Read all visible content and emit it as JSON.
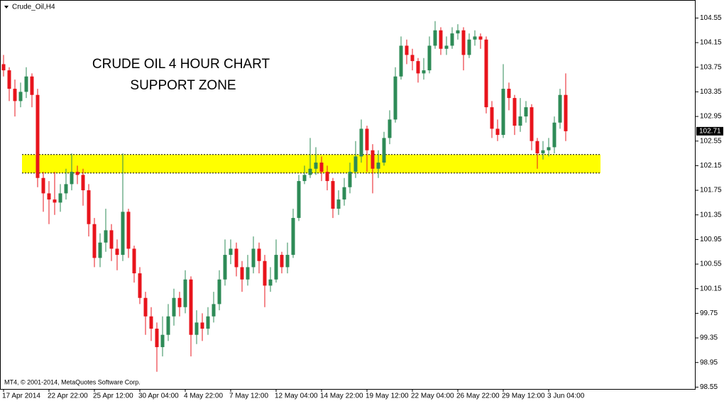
{
  "chart_data": {
    "type": "candlestick",
    "symbol_label": "Crude_Oil,H4",
    "title": "CRUDE OIL 4 HOUR CHART",
    "subtitle": "SUPPORT ZONE",
    "copyright": "MT4, © 2001-2014, MetaQuotes Software Corp.",
    "categories": [
      "17 Apr 2014",
      null,
      null,
      null,
      null,
      null,
      null,
      null,
      "22 Apr 22:00",
      null,
      null,
      null,
      null,
      null,
      null,
      null,
      "25 Apr 12:00",
      null,
      null,
      null,
      null,
      null,
      null,
      null,
      "30 Apr 04:00",
      null,
      null,
      null,
      null,
      null,
      null,
      null,
      "4 May 22:00",
      null,
      null,
      null,
      null,
      null,
      null,
      null,
      "7 May 12:00",
      null,
      null,
      null,
      null,
      null,
      null,
      null,
      "12 May 04:00",
      null,
      null,
      null,
      null,
      null,
      null,
      null,
      "14 May 22:00",
      null,
      null,
      null,
      null,
      null,
      null,
      null,
      "19 May 12:00",
      null,
      null,
      null,
      null,
      null,
      null,
      null,
      "22 May 04:00",
      null,
      null,
      null,
      null,
      null,
      null,
      null,
      "26 May 22:00",
      null,
      null,
      null,
      null,
      null,
      null,
      null,
      "29 May 12:00",
      null,
      null,
      null,
      null,
      null,
      null,
      null,
      "3 Jun 04:00",
      null,
      null,
      null
    ],
    "open": [
      103.8,
      103.7,
      103.4,
      103.2,
      103.35,
      103.6,
      103.3,
      101.95,
      101.7,
      101.6,
      101.55,
      101.7,
      101.85,
      102.05,
      102.0,
      101.75,
      101.2,
      100.65,
      100.9,
      101.1,
      100.8,
      100.7,
      101.4,
      100.8,
      100.4,
      100.0,
      99.7,
      99.5,
      99.2,
      99.4,
      99.7,
      100.0,
      99.85,
      100.3,
      99.4,
      99.6,
      99.5,
      99.7,
      99.9,
      100.3,
      100.7,
      100.8,
      100.5,
      100.3,
      100.5,
      100.8,
      100.6,
      100.2,
      100.3,
      100.7,
      100.5,
      100.7,
      101.3,
      101.9,
      102.0,
      102.1,
      102.2,
      102.05,
      101.9,
      101.45,
      101.6,
      101.8,
      102.05,
      102.3,
      102.75,
      102.4,
      102.1,
      102.2,
      102.6,
      102.9,
      103.6,
      104.1,
      103.95,
      103.85,
      103.65,
      103.7,
      104.1,
      104.35,
      104.05,
      104.1,
      104.3,
      104.35,
      103.95,
      104.2,
      104.25,
      104.2,
      103.1,
      102.75,
      102.65,
      103.4,
      103.25,
      102.8,
      102.95,
      103.1,
      102.55,
      102.35,
      102.4,
      102.45,
      102.85,
      103.3
    ],
    "high": [
      103.95,
      103.75,
      103.55,
      103.5,
      103.75,
      103.65,
      103.4,
      102.05,
      101.9,
      102.05,
      101.85,
      102.1,
      102.35,
      102.15,
      102.1,
      101.85,
      101.3,
      101.05,
      101.45,
      101.2,
      100.95,
      102.35,
      101.45,
      100.85,
      100.5,
      100.1,
      99.85,
      99.6,
      99.7,
      99.9,
      100.15,
      100.1,
      100.45,
      100.35,
      99.8,
      99.75,
      99.85,
      100.1,
      100.45,
      100.95,
      100.95,
      100.9,
      100.6,
      100.7,
      101.0,
      100.9,
      100.7,
      100.5,
      100.95,
      100.75,
      100.9,
      101.45,
      102.0,
      102.15,
      102.6,
      102.45,
      102.3,
      102.15,
      101.95,
      101.75,
      101.95,
      102.2,
      102.55,
      102.9,
      102.8,
      102.5,
      102.4,
      102.7,
      103.05,
      103.75,
      104.25,
      104.2,
      104.05,
      103.9,
      103.9,
      104.25,
      104.5,
      104.4,
      104.25,
      104.4,
      104.45,
      104.4,
      104.3,
      104.35,
      104.3,
      104.25,
      103.2,
      102.9,
      103.8,
      103.5,
      103.3,
      103.25,
      103.2,
      103.15,
      102.6,
      102.55,
      102.6,
      102.95,
      103.4,
      103.65
    ],
    "low": [
      103.6,
      103.2,
      102.95,
      103.1,
      103.25,
      103.1,
      101.8,
      101.4,
      101.2,
      101.35,
      101.4,
      101.6,
      101.75,
      101.85,
      101.5,
      101.0,
      100.5,
      100.5,
      100.75,
      100.6,
      100.45,
      100.6,
      100.65,
      100.25,
      99.9,
      99.4,
      99.3,
      98.8,
      99.05,
      99.3,
      99.55,
      99.7,
      99.75,
      99.05,
      99.25,
      99.3,
      99.4,
      99.6,
      99.8,
      100.2,
      100.55,
      100.35,
      100.1,
      100.2,
      100.4,
      100.4,
      99.85,
      100.1,
      100.25,
      100.4,
      100.4,
      100.65,
      101.25,
      101.85,
      101.95,
      102.0,
      101.9,
      101.75,
      101.3,
      101.35,
      101.5,
      101.7,
      101.95,
      102.2,
      102.05,
      101.7,
      101.95,
      102.15,
      102.5,
      102.85,
      103.55,
      103.8,
      103.7,
      103.5,
      103.55,
      103.65,
      104.05,
      103.95,
      103.95,
      104.05,
      104.2,
      103.7,
      103.9,
      104.1,
      104.05,
      103.0,
      102.6,
      102.55,
      102.6,
      103.05,
      102.65,
      102.7,
      102.85,
      102.4,
      102.1,
      102.25,
      102.3,
      102.35,
      102.75,
      102.55
    ],
    "close": [
      103.7,
      103.4,
      103.2,
      103.35,
      103.6,
      103.3,
      101.95,
      101.7,
      101.6,
      101.55,
      101.7,
      101.85,
      102.05,
      102.0,
      101.75,
      101.2,
      100.65,
      100.9,
      101.1,
      100.8,
      100.7,
      101.4,
      100.8,
      100.4,
      100.0,
      99.7,
      99.5,
      99.2,
      99.4,
      99.7,
      100.0,
      99.85,
      100.3,
      99.4,
      99.6,
      99.5,
      99.7,
      99.9,
      100.3,
      100.7,
      100.8,
      100.5,
      100.3,
      100.5,
      100.8,
      100.6,
      100.2,
      100.3,
      100.7,
      100.5,
      100.7,
      101.3,
      101.9,
      102.0,
      102.1,
      102.2,
      102.05,
      101.9,
      101.45,
      101.6,
      101.8,
      102.05,
      102.3,
      102.75,
      102.4,
      102.1,
      102.2,
      102.6,
      102.9,
      103.6,
      104.1,
      103.95,
      103.85,
      103.65,
      103.7,
      104.1,
      104.35,
      104.05,
      104.1,
      104.3,
      104.35,
      103.95,
      104.2,
      104.25,
      104.2,
      103.1,
      102.75,
      102.65,
      103.4,
      103.25,
      102.8,
      102.95,
      103.1,
      102.55,
      102.35,
      102.4,
      102.45,
      102.85,
      103.3,
      102.71
    ],
    "up_color": "#2e8b57",
    "down_color": "#e8141c",
    "ylim": [
      98.52,
      104.82
    ],
    "yticks": [
      98.55,
      98.95,
      99.35,
      99.75,
      100.15,
      100.55,
      100.95,
      101.35,
      101.75,
      102.15,
      102.55,
      102.95,
      103.35,
      103.75,
      104.15,
      104.55
    ],
    "last_price": 102.71,
    "support_zone": [
      102.03,
      102.33
    ],
    "support_color": "#ffff00",
    "title_color": "#000000",
    "subtitle_color": "#0000ff"
  }
}
